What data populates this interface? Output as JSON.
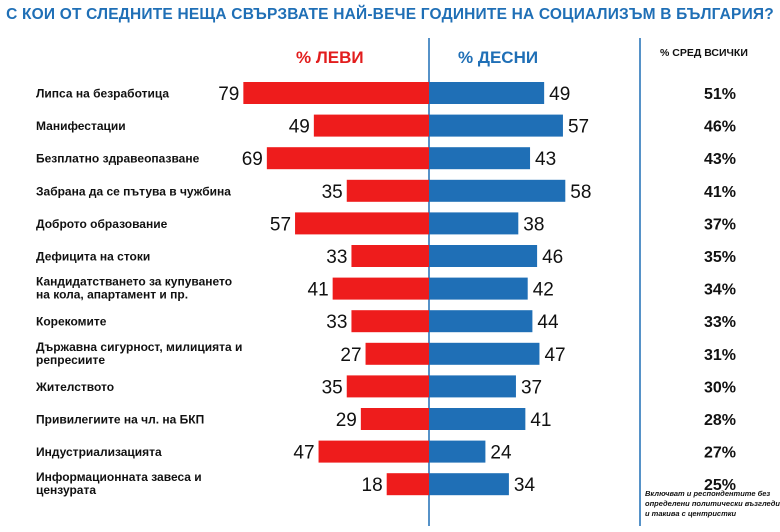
{
  "title": "С КОИ ОТ СЛЕДНИТЕ НЕЩА СВЪРЗВАТЕ НАЙ-ВЕЧЕ ГОДИНИТЕ НА СОЦИАЛИЗЪМ В БЪЛГАРИЯ?",
  "headers": {
    "left": "% ЛЕВИ",
    "right": "% ДЕСНИ",
    "all": "% СРЕД ВСИЧКИ"
  },
  "footnote": "Включват и респондентите без определени политически възгледи и такива с центристки",
  "colors": {
    "left": "#ee1c1c",
    "right": "#1f6fb6",
    "title": "#1f6fb6",
    "divider": "#1f6fb6"
  },
  "chart_data": {
    "type": "bar",
    "orientation": "horizontal-diverging",
    "categories": [
      [
        "Липса на безработица"
      ],
      [
        "Манифестации"
      ],
      [
        "Безплатно здравеопазване"
      ],
      [
        "Забрана да се пътува в чужбина"
      ],
      [
        "Доброто образование"
      ],
      [
        "Дефицита на стоки"
      ],
      [
        "Кандидатстването за купуването",
        "на кола, апартамент и пр."
      ],
      [
        "Корекомите"
      ],
      [
        "Държавна сигурност, милицията и",
        "репресиите"
      ],
      [
        "Жителството"
      ],
      [
        "Привилегиите на чл. на БКП"
      ],
      [
        "Индустриализацията"
      ],
      [
        "Информационната завеса и",
        "цензурата"
      ]
    ],
    "series": [
      {
        "name": "% ЛЕВИ",
        "values": [
          79,
          49,
          69,
          35,
          57,
          33,
          41,
          33,
          27,
          35,
          29,
          47,
          18
        ]
      },
      {
        "name": "% ДЕСНИ",
        "values": [
          49,
          57,
          43,
          58,
          38,
          46,
          42,
          44,
          47,
          37,
          41,
          24,
          34
        ]
      }
    ],
    "all": [
      "51%",
      "46%",
      "43%",
      "41%",
      "37%",
      "35%",
      "34%",
      "33%",
      "31%",
      "30%",
      "28%",
      "27%",
      "25%"
    ]
  }
}
